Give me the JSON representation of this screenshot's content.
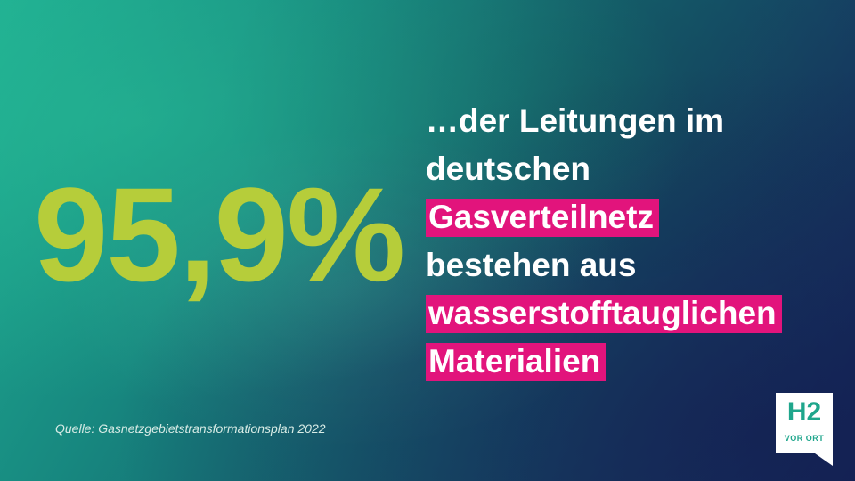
{
  "headline": {
    "value": "95,9%"
  },
  "statement": {
    "line1": "…der Leitungen im",
    "line2": "deutschen",
    "line3": "Gasverteilnetz",
    "line4": "bestehen aus",
    "line5": "wasserstofftauglichen",
    "line6": "Materialien"
  },
  "source": "Quelle: Gasnetzgebietstransformationsplan 2022",
  "logo": {
    "main": "H2",
    "sub": "VOR ORT"
  },
  "colors": {
    "accent_number": "#b6cd3a",
    "highlight": "#e2147c",
    "background_start": "#1fae92",
    "background_end": "#15255a",
    "logo_text": "#1fa68c"
  }
}
